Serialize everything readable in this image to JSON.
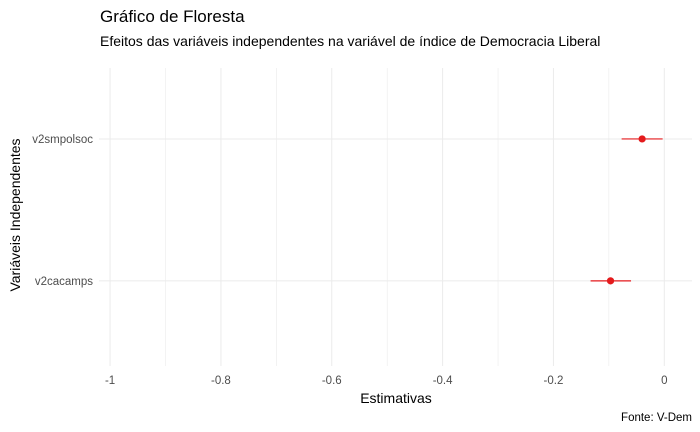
{
  "chart_data": {
    "type": "forest",
    "title": "Gráfico de Floresta",
    "subtitle": "Efeitos das variáveis independentes na variável de índice de Democracia Liberal",
    "xlabel": "Estimativas",
    "ylabel": "Variáveis Independentes",
    "caption": "Fonte: V-Dem",
    "xlim": [
      -1.02,
      0.05
    ],
    "x_ticks": [
      -1,
      -0.8,
      -0.6,
      -0.4,
      -0.2,
      0
    ],
    "x_tick_labels": [
      "-1",
      "-0.8",
      "-0.6",
      "-0.4",
      "-0.2",
      "0"
    ],
    "grid": true,
    "categories": [
      "v2smpolsoc",
      "v2cacamps"
    ],
    "estimates": [
      -0.04,
      -0.097
    ],
    "ci_low": [
      -0.077,
      -0.133
    ],
    "ci_high": [
      -0.003,
      -0.06
    ],
    "point_color": "#e41a1c",
    "grid_color": "#ebebeb"
  }
}
